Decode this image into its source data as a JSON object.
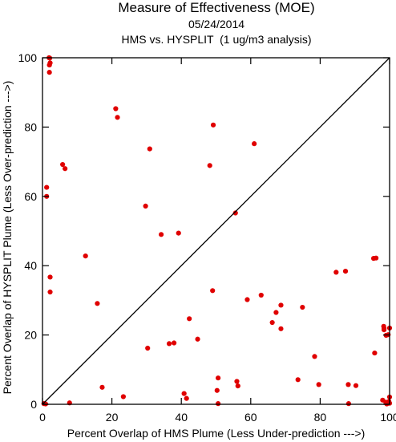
{
  "chart_data": {
    "type": "scatter",
    "title": "Measure of Effectiveness (MOE)",
    "subtitle": "05/24/2014",
    "subtitle2": "HMS vs. HYSPLIT  (1 ug/m3 analysis)",
    "xlabel": "Percent Overlap of HMS Plume (Less Under-prediction --->)",
    "ylabel": "Percent Overlap of HYSPLIT Plume (Less Over-prediction --->)",
    "xlim": [
      0,
      100
    ],
    "ylim": [
      0,
      100
    ],
    "xticks": [
      0,
      20,
      40,
      60,
      80,
      100
    ],
    "yticks": [
      0,
      20,
      40,
      60,
      80,
      100
    ],
    "grid": false,
    "reference_line": "diagonal y = x",
    "point_color": "#e00000",
    "points": [
      [
        1.9,
        100
      ],
      [
        2.1,
        99.9
      ],
      [
        2.2,
        98.5
      ],
      [
        2.0,
        97.9
      ],
      [
        2.0,
        95.8
      ],
      [
        21.1,
        85.3
      ],
      [
        21.6,
        82.8
      ],
      [
        49.2,
        80.6
      ],
      [
        30.9,
        73.7
      ],
      [
        61.0,
        75.2
      ],
      [
        48.2,
        68.9
      ],
      [
        5.8,
        69.2
      ],
      [
        6.5,
        68.0
      ],
      [
        1.2,
        62.6
      ],
      [
        1.2,
        60.0
      ],
      [
        29.7,
        57.2
      ],
      [
        55.6,
        55.2
      ],
      [
        34.2,
        49.0
      ],
      [
        39.2,
        49.4
      ],
      [
        12.4,
        42.8
      ],
      [
        2.2,
        36.7
      ],
      [
        2.2,
        32.4
      ],
      [
        49.0,
        32.8
      ],
      [
        63.0,
        31.5
      ],
      [
        59.0,
        30.2
      ],
      [
        15.8,
        29.1
      ],
      [
        68.7,
        28.6
      ],
      [
        67.3,
        26.5
      ],
      [
        74.9,
        28.0
      ],
      [
        84.6,
        38.1
      ],
      [
        87.3,
        38.4
      ],
      [
        95.4,
        42.1
      ],
      [
        96.1,
        42.2
      ],
      [
        42.3,
        24.7
      ],
      [
        66.2,
        23.6
      ],
      [
        68.7,
        21.8
      ],
      [
        98.3,
        22.5
      ],
      [
        98.4,
        21.9
      ],
      [
        44.7,
        18.8
      ],
      [
        36.5,
        17.5
      ],
      [
        37.9,
        17.7
      ],
      [
        100.0,
        22.0
      ],
      [
        99.0,
        19.9
      ],
      [
        30.3,
        16.2
      ],
      [
        95.7,
        14.8
      ],
      [
        78.4,
        13.8
      ],
      [
        50.6,
        7.6
      ],
      [
        73.6,
        7.1
      ],
      [
        56.0,
        6.6
      ],
      [
        56.3,
        5.3
      ],
      [
        79.6,
        5.7
      ],
      [
        88.1,
        5.7
      ],
      [
        90.3,
        5.4
      ],
      [
        17.2,
        4.9
      ],
      [
        50.3,
        4.0
      ],
      [
        40.8,
        3.1
      ],
      [
        41.5,
        1.7
      ],
      [
        23.3,
        2.2
      ],
      [
        7.8,
        0.4
      ],
      [
        0.4,
        0.2
      ],
      [
        0.9,
        0.1
      ],
      [
        50.6,
        0.2
      ],
      [
        88.2,
        0.2
      ],
      [
        98.0,
        1.2
      ],
      [
        98.9,
        0.6
      ],
      [
        100.0,
        2.1
      ],
      [
        99.8,
        0.8
      ],
      [
        100.0,
        0.3
      ],
      [
        99.2,
        0.1
      ],
      [
        98.4,
        21.5
      ],
      [
        99.6,
        20.1
      ]
    ]
  }
}
